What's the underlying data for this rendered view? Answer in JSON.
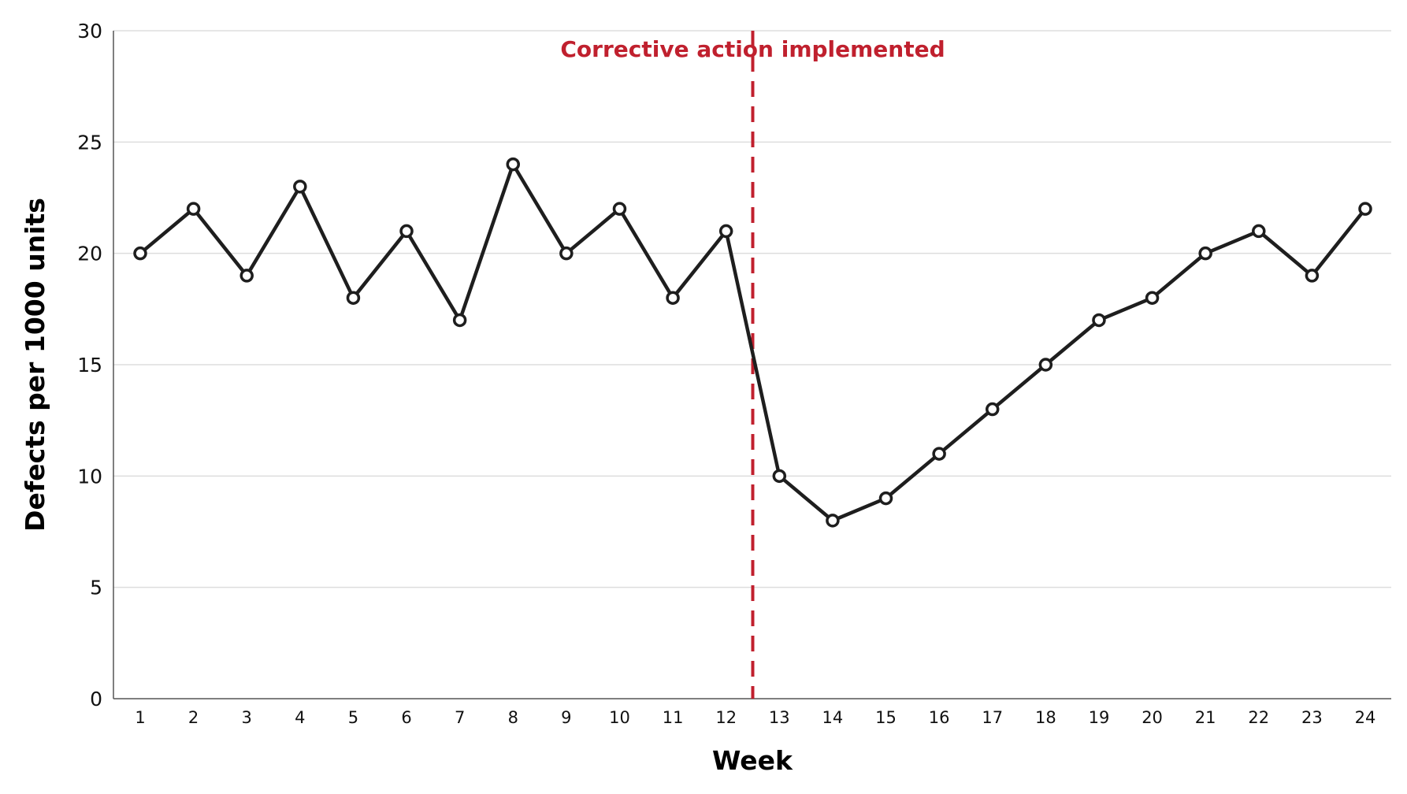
{
  "chart_data": {
    "type": "line",
    "title": "",
    "xlabel": "Week",
    "ylabel": "Defects per 1000 units",
    "x": [
      1,
      2,
      3,
      4,
      5,
      6,
      7,
      8,
      9,
      10,
      11,
      12,
      13,
      14,
      15,
      16,
      17,
      18,
      19,
      20,
      21,
      22,
      23,
      24
    ],
    "series": [
      {
        "values": [
          20,
          22,
          19,
          23,
          18,
          21,
          17,
          24,
          20,
          22,
          18,
          21,
          10,
          8,
          9,
          11,
          13,
          15,
          17,
          18,
          20,
          21,
          19,
          22
        ]
      }
    ],
    "ylim": [
      0,
      30
    ],
    "yticks": [
      0,
      5,
      10,
      15,
      20,
      25,
      30
    ],
    "grid": "horizontal",
    "annotation": {
      "text": "Corrective action implemented",
      "x": 12.5,
      "line_style": "dashed",
      "color": "#c0202e"
    },
    "line_color": "#1e1e1e",
    "marker": "hollow-circle"
  }
}
